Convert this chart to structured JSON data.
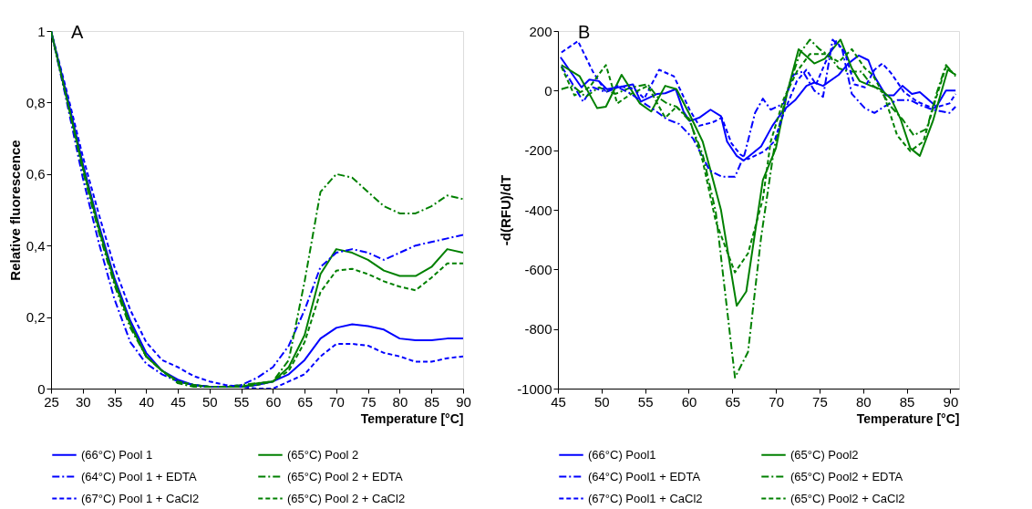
{
  "chart_data": [
    {
      "type": "line",
      "title": "A",
      "xlabel": "Temperature [°C]",
      "ylabel": "Relative fluorescence",
      "xlim": [
        25,
        90
      ],
      "xticks": [
        25,
        30,
        35,
        40,
        45,
        50,
        55,
        60,
        65,
        70,
        75,
        80,
        85,
        90
      ],
      "ylim": [
        0,
        1
      ],
      "yticks": [
        0,
        {
          "value": 0.2,
          "label": "0,2"
        },
        {
          "value": 0.4,
          "label": "0,4"
        },
        {
          "value": 0.6,
          "label": "0,6"
        },
        {
          "value": 0.8,
          "label": "0,8"
        },
        1
      ],
      "grid": false,
      "legend": "bottom",
      "x": [
        25,
        27.5,
        30,
        32.5,
        35,
        37.5,
        40,
        42.5,
        45,
        47.5,
        50,
        52.5,
        55,
        57.5,
        60,
        62.5,
        65,
        67.5,
        70,
        72.5,
        75,
        77.5,
        80,
        82.5,
        85,
        87.5,
        90
      ],
      "series": [
        {
          "name": "(66°C) Pool 1",
          "color": "#0000ff",
          "line_style": "solid",
          "values": [
            1.0,
            0.82,
            0.63,
            0.46,
            0.31,
            0.19,
            0.1,
            0.05,
            0.025,
            0.01,
            0.005,
            0.005,
            0.005,
            0.01,
            0.02,
            0.04,
            0.08,
            0.14,
            0.17,
            0.18,
            0.175,
            0.165,
            0.14,
            0.135,
            0.135,
            0.14,
            0.14
          ]
        },
        {
          "name": "(65°C) Pool 2",
          "color": "#008000",
          "line_style": "solid",
          "values": [
            1.0,
            0.81,
            0.62,
            0.45,
            0.3,
            0.18,
            0.09,
            0.05,
            0.02,
            0.01,
            0.005,
            0.005,
            0.005,
            0.015,
            0.02,
            0.06,
            0.15,
            0.32,
            0.39,
            0.38,
            0.36,
            0.33,
            0.315,
            0.315,
            0.34,
            0.39,
            0.38
          ]
        },
        {
          "name": "(64°C) Pool 1 + EDTA",
          "color": "#0000ff",
          "line_style": "dashdot",
          "values": [
            1.0,
            0.8,
            0.59,
            0.41,
            0.25,
            0.13,
            0.07,
            0.04,
            0.02,
            0.01,
            0.005,
            0.005,
            0.01,
            0.03,
            0.06,
            0.12,
            0.22,
            0.34,
            0.38,
            0.39,
            0.38,
            0.36,
            0.38,
            0.4,
            0.41,
            0.42,
            0.43
          ]
        },
        {
          "name": "(65°C) Pool 2 + EDTA",
          "color": "#008000",
          "line_style": "dashdot",
          "values": [
            1.0,
            0.81,
            0.61,
            0.44,
            0.29,
            0.17,
            0.09,
            0.05,
            0.015,
            0.005,
            0.005,
            0.005,
            0.01,
            0.015,
            0.02,
            0.08,
            0.3,
            0.55,
            0.6,
            0.59,
            0.55,
            0.51,
            0.49,
            0.49,
            0.51,
            0.54,
            0.53
          ]
        },
        {
          "name": "(67°C) Pool 1 + CaCl2",
          "color": "#0000ff",
          "line_style": "dashed",
          "values": [
            1.0,
            0.83,
            0.65,
            0.49,
            0.34,
            0.22,
            0.13,
            0.08,
            0.06,
            0.035,
            0.02,
            0.01,
            0.005,
            0.0,
            0.0,
            0.02,
            0.04,
            0.09,
            0.125,
            0.125,
            0.12,
            0.1,
            0.09,
            0.075,
            0.075,
            0.085,
            0.09
          ]
        },
        {
          "name": "(65°C) Pool 2 + CaCl2",
          "color": "#008000",
          "line_style": "dashed",
          "values": [
            1.0,
            0.81,
            0.62,
            0.45,
            0.3,
            0.18,
            0.09,
            0.05,
            0.02,
            0.01,
            0.005,
            0.005,
            0.005,
            0.01,
            0.02,
            0.05,
            0.13,
            0.27,
            0.33,
            0.335,
            0.32,
            0.3,
            0.285,
            0.275,
            0.31,
            0.35,
            0.35
          ]
        }
      ]
    },
    {
      "type": "line",
      "title": "B",
      "xlabel": "Temperature [°C]",
      "ylabel": "-d(RFU)/dT",
      "xlim": [
        45,
        91
      ],
      "xticks": [
        45,
        50,
        55,
        60,
        65,
        70,
        75,
        80,
        85,
        90
      ],
      "ylim": [
        -1000,
        200
      ],
      "yticks": [
        -1000,
        -800,
        -600,
        -400,
        -200,
        0,
        200
      ],
      "grid": false,
      "legend": "bottom",
      "series": [
        {
          "name": "(66°C) Pool1",
          "color": "#0000ff",
          "line_style": "solid",
          "x": [
            45.3,
            47.7,
            48.6,
            49.7,
            50.6,
            51.9,
            53.6,
            54.5,
            56.4,
            57.3,
            58.5,
            59.4,
            60.1,
            61.2,
            62.5,
            63.7,
            64.4,
            65.5,
            66.3,
            68.3,
            69.6,
            70.9,
            72.2,
            73.5,
            74.4,
            75.4,
            77.2,
            78.3,
            79.5,
            80.6,
            81.3,
            82.6,
            83.5,
            84.5,
            85.6,
            86.5,
            88.4,
            89.5,
            90.6
          ],
          "values": [
            112,
            11,
            37,
            32,
            5,
            11,
            21,
            -37,
            -11,
            -9,
            5,
            -70,
            -102,
            -91,
            -64,
            -86,
            -171,
            -219,
            -235,
            -187,
            -118,
            -64,
            -32,
            16,
            27,
            16,
            53,
            91,
            118,
            102,
            48,
            -16,
            -16,
            16,
            -11,
            -5,
            -54,
            0,
            0
          ]
        },
        {
          "name": "(65°C) Pool2",
          "color": "#008000",
          "line_style": "solid",
          "x": [
            45.4,
            47.5,
            49.5,
            50.5,
            52.3,
            54.4,
            55.7,
            57.3,
            58.6,
            60.1,
            61.6,
            62.5,
            63.7,
            65.5,
            66.6,
            68.5,
            70.0,
            71.3,
            72.6,
            74.4,
            75.6,
            77.4,
            78.7,
            79.6,
            80.9,
            82.0,
            83.2,
            84.3,
            85.4,
            86.5,
            88.0,
            89.7,
            90.6
          ],
          "values": [
            86,
            48,
            -59,
            -54,
            53,
            -43,
            -70,
            16,
            5,
            -80,
            -171,
            -268,
            -401,
            -722,
            -674,
            -300,
            -193,
            -5,
            139,
            91,
            107,
            171,
            75,
            32,
            16,
            5,
            -27,
            -96,
            -193,
            -219,
            -102,
            70,
            53
          ]
        },
        {
          "name": "(64°C) Pool1 + EDTA",
          "color": "#0000ff",
          "line_style": "dashdot",
          "x": [
            45.4,
            46.7,
            47.9,
            49.0,
            50.5,
            51.9,
            53.4,
            54.9,
            56.0,
            57.5,
            58.9,
            60.5,
            62.4,
            63.8,
            65.3,
            66.4,
            67.6,
            68.5,
            69.4,
            70.9,
            72.0,
            73.1,
            74.4,
            75.4,
            76.5,
            77.6,
            78.7,
            80.2,
            81.3,
            82.4,
            83.9,
            85.4,
            86.5,
            88.0,
            89.9,
            90.6
          ],
          "values": [
            82,
            21,
            -37,
            11,
            -5,
            11,
            -11,
            -43,
            -64,
            -96,
            -112,
            -161,
            -268,
            -289,
            -289,
            -214,
            -75,
            -27,
            -64,
            -43,
            53,
            64,
            0,
            -21,
            171,
            139,
            -11,
            -59,
            -75,
            -54,
            -32,
            -32,
            -48,
            -64,
            -75,
            -54
          ]
        },
        {
          "name": "(65°C) Pool2 + EDTA",
          "color": "#008000",
          "line_style": "dashdot",
          "x": [
            45.4,
            46.7,
            48.2,
            49.7,
            51.6,
            53.4,
            55.3,
            56.4,
            57.5,
            58.6,
            60.1,
            61.6,
            63.1,
            65.3,
            66.8,
            68.3,
            69.8,
            71.3,
            72.8,
            73.9,
            75.0,
            76.1,
            77.2,
            78.3,
            79.8,
            80.9,
            82.0,
            83.2,
            84.5,
            85.8,
            87.3,
            88.4,
            89.5,
            90.6
          ],
          "values": [
            5,
            16,
            -21,
            11,
            -11,
            11,
            21,
            -21,
            -43,
            -54,
            -102,
            -214,
            -407,
            -963,
            -877,
            -492,
            -193,
            0,
            128,
            171,
            139,
            118,
            75,
            64,
            64,
            21,
            0,
            -54,
            -96,
            -150,
            -128,
            -11,
            86,
            48
          ]
        },
        {
          "name": "(67°C) Pool1 + CaCl2",
          "color": "#0000ff",
          "line_style": "dashed",
          "x": [
            45.4,
            47.3,
            49.0,
            50.5,
            51.9,
            53.8,
            54.9,
            56.6,
            58.3,
            60.1,
            61.2,
            62.7,
            63.8,
            64.9,
            65.9,
            66.8,
            68.7,
            69.8,
            70.9,
            72.4,
            73.5,
            74.6,
            75.7,
            76.9,
            77.9,
            79.0,
            80.2,
            81.3,
            82.2,
            83.2,
            84.7,
            86.2,
            88.0,
            89.9,
            90.6
          ],
          "values": [
            128,
            166,
            64,
            -5,
            16,
            5,
            -27,
            70,
            48,
            -64,
            -118,
            -107,
            -91,
            -177,
            -214,
            -230,
            -203,
            -171,
            -75,
            32,
            70,
            21,
            96,
            166,
            128,
            21,
            11,
            70,
            91,
            59,
            -5,
            -37,
            -59,
            -43,
            -11
          ]
        },
        {
          "name": "(65°C) Pool2 + CaCl2",
          "color": "#008000",
          "line_style": "dashed",
          "x": [
            45.4,
            46.9,
            48.6,
            50.5,
            51.8,
            53.4,
            55.3,
            56.4,
            57.3,
            58.6,
            60.1,
            61.6,
            63.1,
            65.3,
            66.8,
            68.5,
            69.4,
            70.9,
            72.4,
            73.9,
            75.7,
            77.2,
            78.7,
            80.2,
            81.1,
            82.4,
            83.9,
            85.4,
            86.9,
            88.4,
            89.5,
            90.6
          ],
          "values": [
            80,
            -16,
            11,
            86,
            -43,
            -11,
            16,
            -43,
            -91,
            -54,
            -96,
            -236,
            -439,
            -610,
            -546,
            -364,
            -171,
            -27,
            64,
            123,
            123,
            96,
            139,
            75,
            53,
            -16,
            -150,
            -203,
            -171,
            -21,
            80,
            53
          ]
        }
      ]
    }
  ]
}
